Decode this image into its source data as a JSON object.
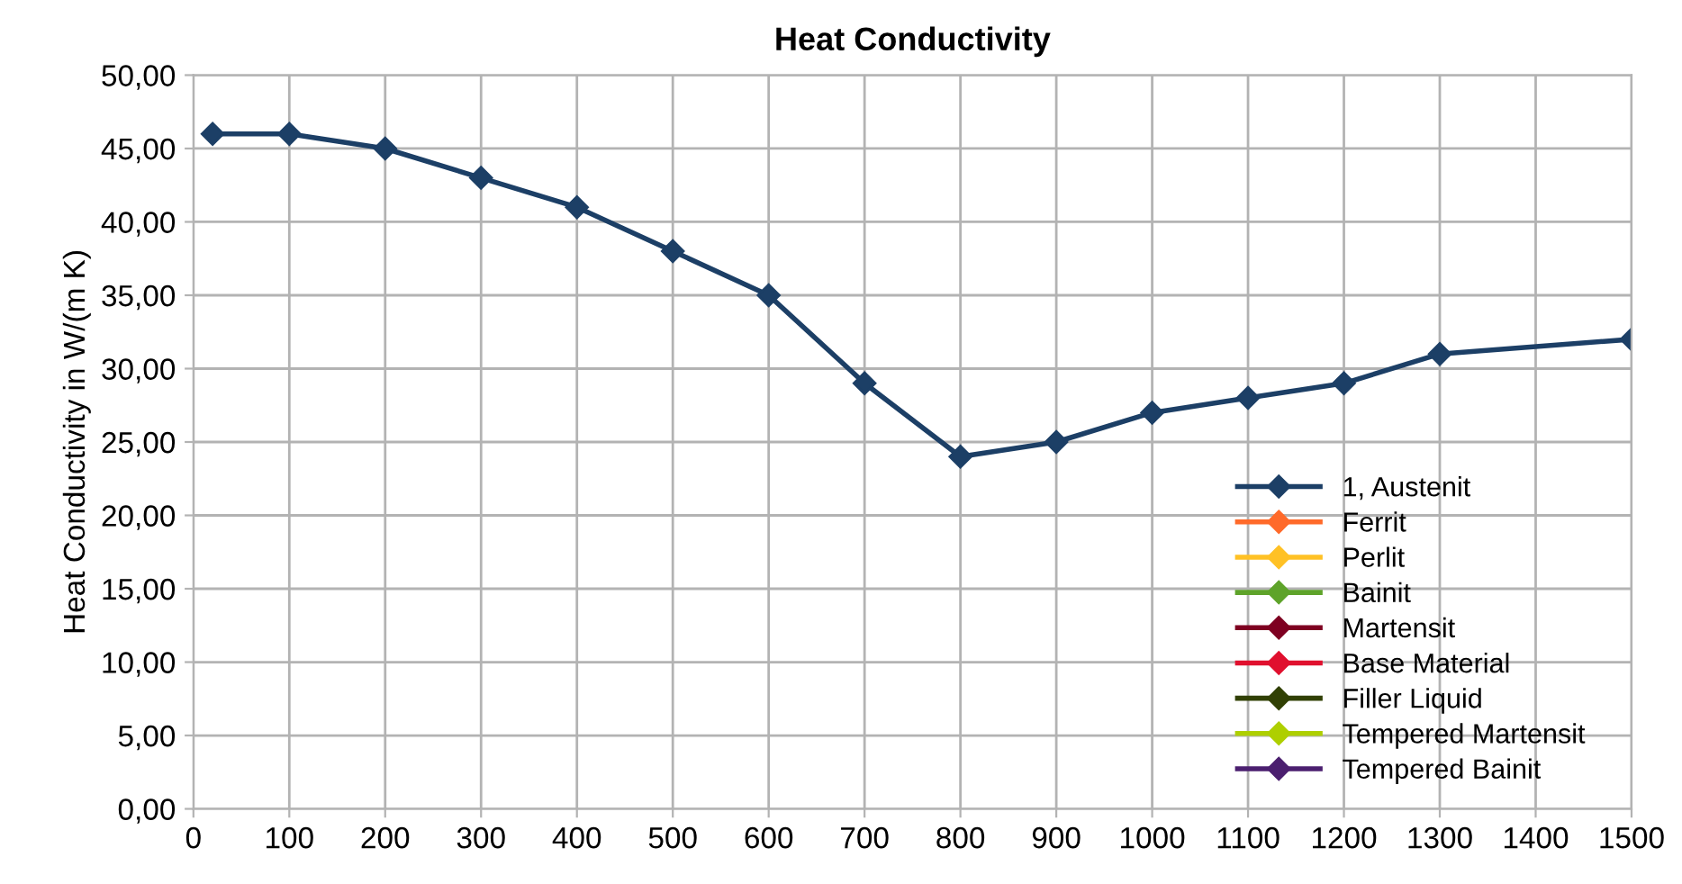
{
  "chart_data": {
    "type": "line",
    "title": "Heat Conductivity",
    "ylabel": "Heat Conductivity in W/(m K)",
    "x": [
      20,
      100,
      200,
      300,
      400,
      500,
      600,
      700,
      800,
      900,
      1000,
      1100,
      1200,
      1300,
      1500
    ],
    "series": [
      {
        "name": "1, Austenit",
        "color": "#1c3f66",
        "values": [
          46,
          46,
          45,
          43,
          41,
          38,
          35,
          29,
          24,
          25,
          27,
          28,
          29,
          31,
          32
        ]
      },
      {
        "name": "Ferrit",
        "color": "#ff6a2a",
        "values": [
          null,
          null,
          null,
          null,
          null,
          null,
          null,
          null,
          null,
          null,
          null,
          null,
          null,
          null,
          null
        ]
      },
      {
        "name": "Perlit",
        "color": "#ffc125",
        "values": [
          null,
          null,
          null,
          null,
          null,
          null,
          null,
          null,
          null,
          null,
          null,
          null,
          null,
          null,
          null
        ]
      },
      {
        "name": "Bainit",
        "color": "#5ea32a",
        "values": [
          null,
          null,
          null,
          null,
          null,
          null,
          null,
          null,
          null,
          null,
          null,
          null,
          null,
          null,
          null
        ]
      },
      {
        "name": "Martensit",
        "color": "#7e0021",
        "values": [
          null,
          null,
          null,
          null,
          null,
          null,
          null,
          null,
          null,
          null,
          null,
          null,
          null,
          null,
          null
        ]
      },
      {
        "name": "Base Material",
        "color": "#e0102e",
        "values": [
          null,
          null,
          null,
          null,
          null,
          null,
          null,
          null,
          null,
          null,
          null,
          null,
          null,
          null,
          null
        ]
      },
      {
        "name": "Filler Liquid",
        "color": "#314004",
        "values": [
          null,
          null,
          null,
          null,
          null,
          null,
          null,
          null,
          null,
          null,
          null,
          null,
          null,
          null,
          null
        ]
      },
      {
        "name": "Tempered Martensit",
        "color": "#aecf00",
        "values": [
          null,
          null,
          null,
          null,
          null,
          null,
          null,
          null,
          null,
          null,
          null,
          null,
          null,
          null,
          null
        ]
      },
      {
        "name": "Tempered Bainit",
        "color": "#4b1f6f",
        "values": [
          null,
          null,
          null,
          null,
          null,
          null,
          null,
          null,
          null,
          null,
          null,
          null,
          null,
          null,
          null
        ]
      }
    ],
    "xlim": [
      0,
      1500
    ],
    "xticks": [
      0,
      100,
      200,
      300,
      400,
      500,
      600,
      700,
      800,
      900,
      1000,
      1100,
      1200,
      1300,
      1400,
      1500
    ],
    "ylim": [
      0,
      50
    ],
    "yticks": [
      {
        "value": 0,
        "label": "0,00"
      },
      {
        "value": 5,
        "label": "5,00"
      },
      {
        "value": 10,
        "label": "10,00"
      },
      {
        "value": 15,
        "label": "15,00"
      },
      {
        "value": 20,
        "label": "20,00"
      },
      {
        "value": 25,
        "label": "25,00"
      },
      {
        "value": 30,
        "label": "30,00"
      },
      {
        "value": 35,
        "label": "35,00"
      },
      {
        "value": 40,
        "label": "40,00"
      },
      {
        "value": 45,
        "label": "45,00"
      },
      {
        "value": 50,
        "label": "50,00"
      }
    ],
    "grid": true,
    "legend": "bottom right",
    "marker": "diamond",
    "line_style": "solid"
  }
}
